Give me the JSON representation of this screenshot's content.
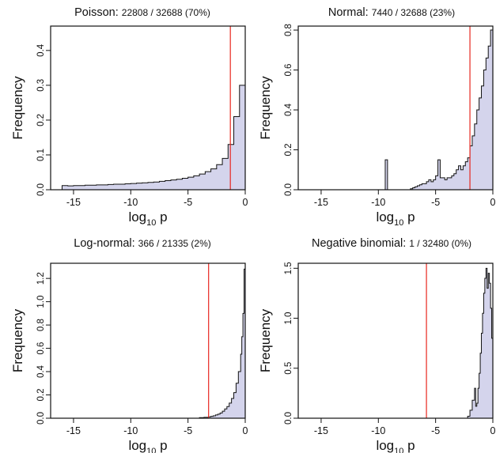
{
  "chart_data": [
    {
      "type": "histogram",
      "title_main": "Poisson:",
      "title_sub": "22808 / 32688 (70%)",
      "xlabel": "log",
      "xlabel_sub": "10",
      "xlabel_suffix": " p",
      "ylabel": "Frequency",
      "xlim": [
        -17,
        0
      ],
      "ylim": [
        0,
        0.47
      ],
      "xticks": [
        "-15",
        "-10",
        "-5",
        "0"
      ],
      "yticks": [
        "0.0",
        "0.1",
        "0.2",
        "0.3",
        "0.4"
      ],
      "ytick_values": [
        0,
        0.1,
        0.2,
        0.3,
        0.4
      ],
      "xtick_values": [
        -15,
        -10,
        -5,
        0
      ],
      "cutoff": -1.3,
      "hist_x": [
        -16,
        -15.5,
        -15,
        -14.5,
        -14,
        -13.5,
        -13,
        -12.5,
        -12,
        -11.5,
        -11,
        -10.5,
        -10,
        -9.5,
        -9,
        -8.5,
        -8,
        -7.5,
        -7,
        -6.5,
        -6,
        -5.5,
        -5,
        -4.5,
        -4,
        -3.5,
        -3,
        -2.5,
        -2,
        -1.5,
        -1,
        -0.5,
        0
      ],
      "hist_y": [
        0.012,
        0.011,
        0.012,
        0.012,
        0.013,
        0.013,
        0.014,
        0.014,
        0.015,
        0.016,
        0.016,
        0.017,
        0.018,
        0.019,
        0.02,
        0.021,
        0.022,
        0.024,
        0.026,
        0.028,
        0.03,
        0.033,
        0.036,
        0.04,
        0.045,
        0.052,
        0.06,
        0.072,
        0.09,
        0.13,
        0.21,
        0.3,
        0.46
      ]
    },
    {
      "type": "histogram",
      "title_main": "Normal:",
      "title_sub": "7440 / 32688 (23%)",
      "xlabel": "log",
      "xlabel_sub": "10",
      "xlabel_suffix": " p",
      "ylabel": "Frequency",
      "xlim": [
        -17,
        0
      ],
      "ylim": [
        0,
        0.82
      ],
      "xticks": [
        "-15",
        "-10",
        "-5",
        "0"
      ],
      "yticks": [
        "0.0",
        "0.2",
        "0.4",
        "0.6",
        "0.8"
      ],
      "ytick_values": [
        0,
        0.2,
        0.4,
        0.6,
        0.8
      ],
      "xtick_values": [
        -15,
        -10,
        -5,
        0
      ],
      "cutoff": -2.0,
      "hist_x": [
        -9.6,
        -9.4,
        -9.2,
        -9.0,
        -7.2,
        -7.0,
        -6.8,
        -6.6,
        -6.4,
        -6.2,
        -6.0,
        -5.8,
        -5.6,
        -5.4,
        -5.2,
        -5.0,
        -4.8,
        -4.6,
        -4.4,
        -4.2,
        -4.0,
        -3.8,
        -3.6,
        -3.4,
        -3.2,
        -3.0,
        -2.8,
        -2.6,
        -2.4,
        -2.2,
        -2.0,
        -1.8,
        -1.6,
        -1.4,
        -1.2,
        -1.0,
        -0.8,
        -0.6,
        -0.4,
        -0.2,
        0
      ],
      "hist_y": [
        0,
        0.15,
        0.0,
        0,
        0.005,
        0.01,
        0.015,
        0.02,
        0.025,
        0.03,
        0.03,
        0.04,
        0.05,
        0.04,
        0.05,
        0.07,
        0.15,
        0.06,
        0.06,
        0.05,
        0.06,
        0.06,
        0.07,
        0.08,
        0.1,
        0.12,
        0.1,
        0.12,
        0.14,
        0.16,
        0.22,
        0.27,
        0.33,
        0.4,
        0.46,
        0.52,
        0.6,
        0.66,
        0.72,
        0.8,
        0.8
      ]
    },
    {
      "type": "histogram",
      "title_main": "Log-normal:",
      "title_sub": "366 / 21335 (2%)",
      "xlabel": "log",
      "xlabel_sub": "10",
      "xlabel_suffix": " p",
      "ylabel": "Frequency",
      "xlim": [
        -17,
        0
      ],
      "ylim": [
        0,
        1.33
      ],
      "xticks": [
        "-15",
        "-10",
        "-5",
        "0"
      ],
      "yticks": [
        "0.0",
        "0.2",
        "0.4",
        "0.6",
        "0.8",
        "1.0",
        "1.2"
      ],
      "ytick_values": [
        0,
        0.2,
        0.4,
        0.6,
        0.8,
        1.0,
        1.2
      ],
      "xtick_values": [
        -15,
        -10,
        -5,
        0
      ],
      "cutoff": -3.2,
      "hist_x": [
        -4.0,
        -3.6,
        -3.2,
        -3.0,
        -2.8,
        -2.6,
        -2.4,
        -2.2,
        -2.0,
        -1.8,
        -1.6,
        -1.4,
        -1.2,
        -1.0,
        -0.8,
        -0.6,
        -0.4,
        -0.3,
        -0.2,
        -0.1,
        0
      ],
      "hist_y": [
        0.005,
        0.008,
        0.012,
        0.016,
        0.02,
        0.028,
        0.035,
        0.045,
        0.06,
        0.08,
        0.1,
        0.13,
        0.17,
        0.22,
        0.3,
        0.4,
        0.55,
        0.7,
        0.9,
        1.28,
        1.28
      ]
    },
    {
      "type": "histogram",
      "title_main": "Negative binomial:",
      "title_sub": "1 / 32480 (0%)",
      "xlabel": "log",
      "xlabel_sub": "10",
      "xlabel_suffix": " p",
      "ylabel": "Frequency",
      "xlim": [
        -17,
        0
      ],
      "ylim": [
        0,
        1.55
      ],
      "xticks": [
        "-15",
        "-10",
        "-5",
        "0"
      ],
      "yticks": [
        "0.0",
        "0.5",
        "1.0",
        "1.5"
      ],
      "ytick_values": [
        0,
        0.5,
        1.0,
        1.5
      ],
      "xtick_values": [
        -15,
        -10,
        -5,
        0
      ],
      "cutoff": -5.8,
      "hist_x": [
        -2.2,
        -2.0,
        -1.8,
        -1.6,
        -1.5,
        -1.4,
        -1.3,
        -1.2,
        -1.1,
        -1.0,
        -0.9,
        -0.8,
        -0.7,
        -0.6,
        -0.5,
        -0.4,
        -0.3,
        -0.2,
        -0.1,
        0
      ],
      "hist_y": [
        0.02,
        0.08,
        0.18,
        0.3,
        0.12,
        0.15,
        0.3,
        0.45,
        0.65,
        0.85,
        1.05,
        1.25,
        1.4,
        1.5,
        1.3,
        1.45,
        1.35,
        1.1,
        0.8,
        0.5
      ]
    }
  ]
}
